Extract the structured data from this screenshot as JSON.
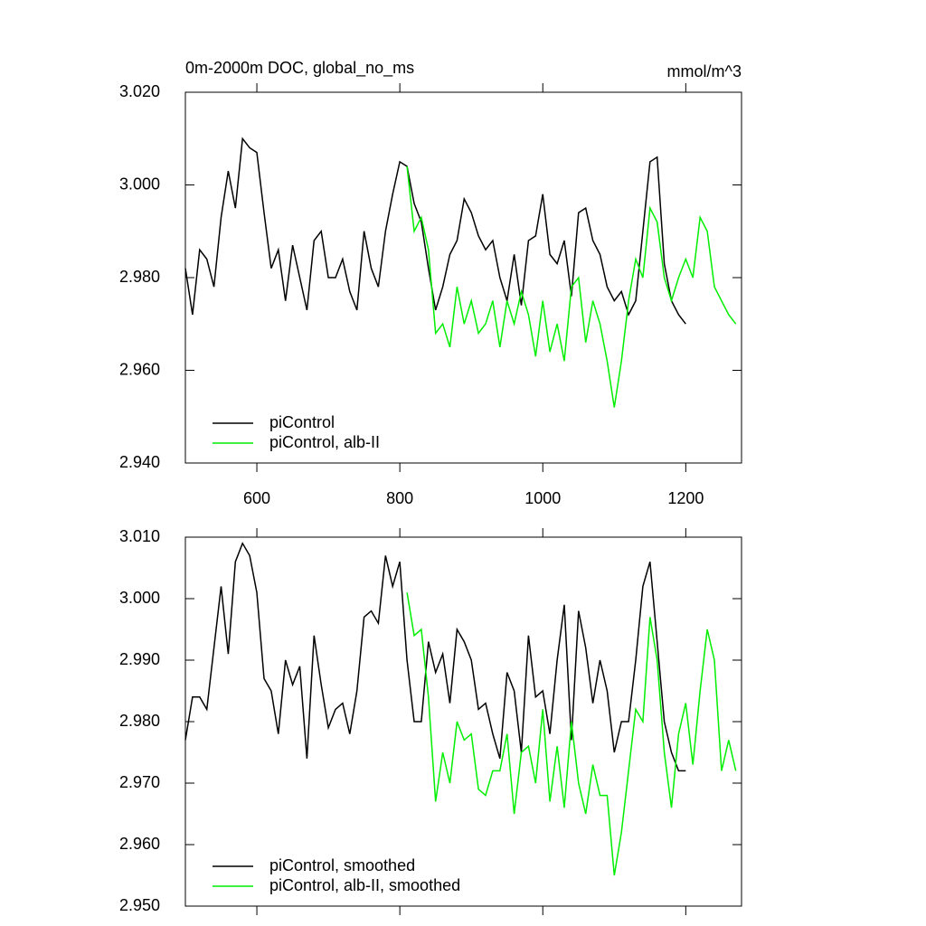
{
  "chart_data": [
    {
      "type": "line",
      "title": "0m-2000m DOC, global_no_ms",
      "units": "mmol/m^3",
      "xlim": [
        500,
        1278
      ],
      "xticks": [
        600,
        800,
        1000,
        1200
      ],
      "xtick_labels": true,
      "ylim": [
        2.94,
        3.02
      ],
      "yticks": [
        {
          "value": 2.94,
          "label": "2.940"
        },
        {
          "value": 2.96,
          "label": "2.960"
        },
        {
          "value": 2.98,
          "label": "2.980"
        },
        {
          "value": 3.0,
          "label": "3.000"
        },
        {
          "value": 3.02,
          "label": "3.020"
        }
      ],
      "legend": "lower left",
      "series": [
        {
          "name": "piControl",
          "color": "#000000",
          "x": [
            500,
            510,
            520,
            530,
            540,
            550,
            560,
            570,
            580,
            590,
            600,
            610,
            620,
            630,
            640,
            650,
            660,
            670,
            680,
            690,
            700,
            710,
            720,
            730,
            740,
            750,
            760,
            770,
            780,
            790,
            800,
            810,
            820,
            830,
            840,
            850,
            860,
            870,
            880,
            890,
            900,
            910,
            920,
            930,
            940,
            950,
            960,
            970,
            980,
            990,
            1000,
            1010,
            1020,
            1030,
            1040,
            1050,
            1060,
            1070,
            1080,
            1090,
            1100,
            1110,
            1120,
            1130,
            1140,
            1150,
            1160,
            1170,
            1180,
            1190,
            1200
          ],
          "values": [
            2.982,
            2.972,
            2.986,
            2.984,
            2.978,
            2.993,
            3.003,
            2.995,
            3.01,
            3.008,
            3.007,
            2.994,
            2.982,
            2.986,
            2.975,
            2.987,
            2.98,
            2.973,
            2.988,
            2.99,
            2.98,
            2.98,
            2.984,
            2.977,
            2.973,
            2.99,
            2.982,
            2.978,
            2.99,
            2.998,
            3.005,
            3.004,
            2.996,
            2.992,
            2.982,
            2.973,
            2.978,
            2.985,
            2.988,
            2.997,
            2.994,
            2.989,
            2.986,
            2.988,
            2.98,
            2.975,
            2.985,
            2.974,
            2.988,
            2.989,
            2.998,
            2.985,
            2.983,
            2.988,
            2.976,
            2.994,
            2.995,
            2.988,
            2.985,
            2.978,
            2.975,
            2.977,
            2.972,
            2.975,
            2.99,
            3.005,
            3.006,
            2.983,
            2.975,
            2.972,
            2.97
          ]
        },
        {
          "name": "piControl, alb-II",
          "color": "#00ee00",
          "x": [
            810,
            820,
            830,
            840,
            850,
            860,
            870,
            880,
            890,
            900,
            910,
            920,
            930,
            940,
            950,
            960,
            970,
            980,
            990,
            1000,
            1010,
            1020,
            1030,
            1040,
            1050,
            1060,
            1070,
            1080,
            1090,
            1100,
            1110,
            1120,
            1130,
            1140,
            1150,
            1160,
            1170,
            1180,
            1190,
            1200,
            1210,
            1220,
            1230,
            1240,
            1250,
            1260,
            1270
          ],
          "values": [
            3.004,
            2.99,
            2.993,
            2.986,
            2.968,
            2.97,
            2.965,
            2.978,
            2.97,
            2.975,
            2.968,
            2.97,
            2.975,
            2.965,
            2.975,
            2.97,
            2.977,
            2.972,
            2.963,
            2.975,
            2.964,
            2.97,
            2.962,
            2.978,
            2.98,
            2.966,
            2.975,
            2.97,
            2.962,
            2.952,
            2.962,
            2.975,
            2.984,
            2.98,
            2.995,
            2.992,
            2.98,
            2.975,
            2.98,
            2.984,
            2.98,
            2.993,
            2.99,
            2.978,
            2.975,
            2.972,
            2.97
          ]
        }
      ]
    },
    {
      "type": "line",
      "xlim": [
        500,
        1278
      ],
      "xticks": [
        600,
        800,
        1000,
        1200
      ],
      "xtick_labels": false,
      "ylim": [
        2.95,
        3.01
      ],
      "yticks": [
        {
          "value": 2.95,
          "label": "2.950"
        },
        {
          "value": 2.96,
          "label": "2.960"
        },
        {
          "value": 2.97,
          "label": "2.970"
        },
        {
          "value": 2.98,
          "label": "2.980"
        },
        {
          "value": 2.99,
          "label": "2.990"
        },
        {
          "value": 3.0,
          "label": "3.000"
        },
        {
          "value": 3.01,
          "label": "3.010"
        }
      ],
      "legend": "lower left",
      "series": [
        {
          "name": "piControl, smoothed",
          "color": "#000000",
          "x": [
            500,
            510,
            520,
            530,
            540,
            550,
            560,
            570,
            580,
            590,
            600,
            610,
            620,
            630,
            640,
            650,
            660,
            670,
            680,
            690,
            700,
            710,
            720,
            730,
            740,
            750,
            760,
            770,
            780,
            790,
            800,
            810,
            820,
            830,
            840,
            850,
            860,
            870,
            880,
            890,
            900,
            910,
            920,
            930,
            940,
            950,
            960,
            970,
            980,
            990,
            1000,
            1010,
            1020,
            1030,
            1040,
            1050,
            1060,
            1070,
            1080,
            1090,
            1100,
            1110,
            1120,
            1130,
            1140,
            1150,
            1160,
            1170,
            1180,
            1190,
            1200
          ],
          "values": [
            2.977,
            2.984,
            2.984,
            2.982,
            2.992,
            3.002,
            2.991,
            3.006,
            3.009,
            3.007,
            3.001,
            2.987,
            2.985,
            2.978,
            2.99,
            2.986,
            2.989,
            2.974,
            2.994,
            2.986,
            2.979,
            2.982,
            2.983,
            2.978,
            2.985,
            2.997,
            2.998,
            2.996,
            3.007,
            3.002,
            3.006,
            2.99,
            2.98,
            2.98,
            2.993,
            2.988,
            2.991,
            2.983,
            2.995,
            2.993,
            2.99,
            2.982,
            2.983,
            2.978,
            2.974,
            2.988,
            2.985,
            2.975,
            2.994,
            2.984,
            2.985,
            2.978,
            2.99,
            2.999,
            2.977,
            2.998,
            2.992,
            2.983,
            2.99,
            2.985,
            2.975,
            2.98,
            2.98,
            2.99,
            3.002,
            3.006,
            2.993,
            2.98,
            2.975,
            2.972,
            2.972
          ]
        },
        {
          "name": "piControl, alb-II, smoothed",
          "color": "#00ee00",
          "x": [
            810,
            820,
            830,
            840,
            850,
            860,
            870,
            880,
            890,
            900,
            910,
            920,
            930,
            940,
            950,
            960,
            970,
            980,
            990,
            1000,
            1010,
            1020,
            1030,
            1040,
            1050,
            1060,
            1070,
            1080,
            1090,
            1100,
            1110,
            1120,
            1130,
            1140,
            1150,
            1160,
            1170,
            1180,
            1190,
            1200,
            1210,
            1220,
            1230,
            1240,
            1250,
            1260,
            1270
          ],
          "values": [
            3.001,
            2.994,
            2.995,
            2.984,
            2.967,
            2.975,
            2.97,
            2.98,
            2.977,
            2.978,
            2.969,
            2.968,
            2.972,
            2.972,
            2.978,
            2.965,
            2.975,
            2.976,
            2.97,
            2.982,
            2.967,
            2.976,
            2.966,
            2.98,
            2.97,
            2.965,
            2.973,
            2.968,
            2.968,
            2.955,
            2.962,
            2.972,
            2.982,
            2.98,
            2.997,
            2.99,
            2.975,
            2.966,
            2.978,
            2.983,
            2.973,
            2.985,
            2.995,
            2.99,
            2.972,
            2.977,
            2.972
          ]
        }
      ]
    }
  ]
}
